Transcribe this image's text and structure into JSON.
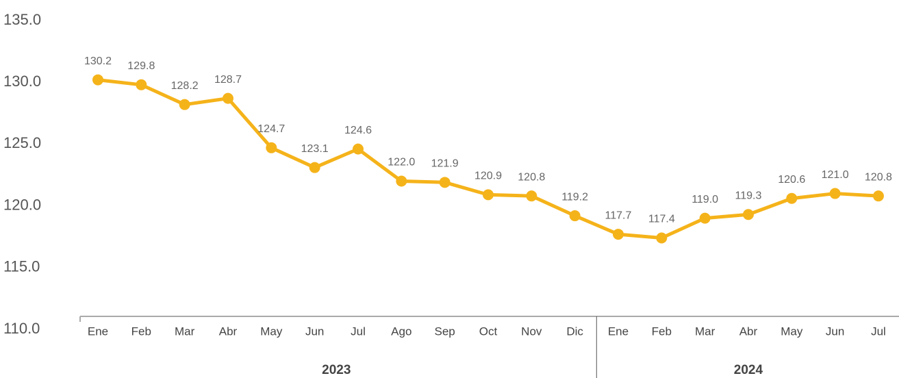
{
  "chart_data": {
    "type": "line",
    "groups": [
      {
        "name": "2023",
        "categories": [
          "Ene",
          "Feb",
          "Mar",
          "Abr",
          "May",
          "Jun",
          "Jul",
          "Ago",
          "Sep",
          "Oct",
          "Nov",
          "Dic"
        ]
      },
      {
        "name": "2024",
        "categories": [
          "Ene",
          "Feb",
          "Mar",
          "Abr",
          "May",
          "Jun",
          "Jul"
        ]
      }
    ],
    "values": [
      130.2,
      129.8,
      128.2,
      128.7,
      124.7,
      123.1,
      124.6,
      122.0,
      121.9,
      120.9,
      120.8,
      119.2,
      117.7,
      117.4,
      119.0,
      119.3,
      120.6,
      121.0,
      120.8
    ],
    "value_labels": [
      "130.2",
      "129.8",
      "128.2",
      "128.7",
      "124.7",
      "123.1",
      "124.6",
      "122.0",
      "121.9",
      "120.9",
      "120.8",
      "119.2",
      "117.7",
      "117.4",
      "119.0",
      "119.3",
      "120.6",
      "121.0",
      "120.8"
    ],
    "color": "#f5b31a",
    "ylim": [
      110,
      135
    ],
    "yticks": [
      {
        "value": 110,
        "label": "110.0"
      },
      {
        "value": 115,
        "label": "115.0"
      },
      {
        "value": 120,
        "label": "120.0"
      },
      {
        "value": 125,
        "label": "125.0"
      },
      {
        "value": 130,
        "label": "130.0"
      },
      {
        "value": 135,
        "label": "135.0"
      }
    ],
    "grid": false
  }
}
